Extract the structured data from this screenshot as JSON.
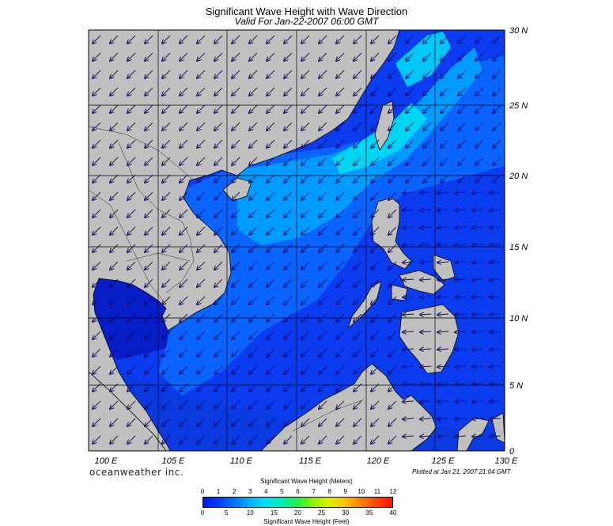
{
  "title": "Significant Wave Height with Wave Direction",
  "subtitle": "Valid For Jan-22-2007 06:00 GMT",
  "lat_labels": [
    "30 N",
    "25 N",
    "20 N",
    "15 N",
    "10 N",
    "5 N",
    "0"
  ],
  "lon_labels": [
    "100 E",
    "105 E",
    "110 E",
    "115 E",
    "120 E",
    "125 E",
    "130 E"
  ],
  "map_extent": {
    "lon_min": 100,
    "lon_max": 130,
    "lat_min": 0,
    "lat_max": 30
  },
  "colors": {
    "land": "#c0c0c0",
    "coast": "#000000",
    "grid": "#000000",
    "arrow": "#1a0a66",
    "wave_0_1m": "#0018f0",
    "wave_1_2m": "#005aff",
    "wave_2_3m": "#00a8ff",
    "wave_3_4m": "#00e8f0"
  },
  "branding": "oceanweather inc.",
  "plotted_at": "Plotted at Jan 21, 2007 21:04 GMT",
  "colorbar": {
    "title_meters": "Significant Wave Height (Meters)",
    "title_feet": "Significant Wave Height (Feet)",
    "meter_ticks": [
      "0",
      "1",
      "2",
      "3",
      "4",
      "5",
      "6",
      "7",
      "8",
      "9",
      "10",
      "11",
      "12"
    ],
    "feet_ticks": [
      "0",
      "5",
      "10",
      "15",
      "20",
      "25",
      "30",
      "35",
      "40"
    ]
  }
}
